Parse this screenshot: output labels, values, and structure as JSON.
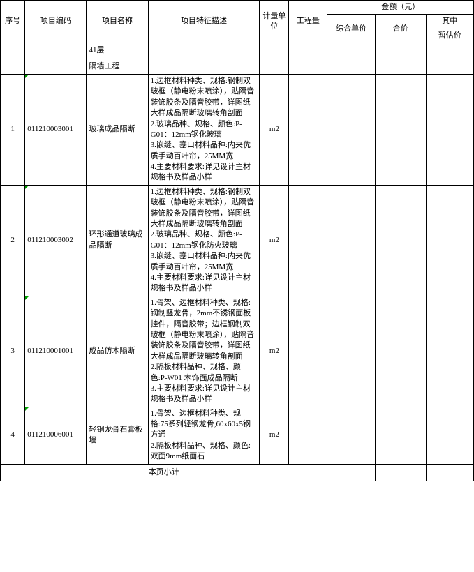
{
  "headers": {
    "seq": "序号",
    "code": "项目编码",
    "name": "项目名称",
    "desc": "项目特征描述",
    "unit": "计量单位",
    "qty": "工程量",
    "amount_group": "金额（元）",
    "unit_price": "综合单价",
    "total_price": "合价",
    "of_which": "其中",
    "est_price": "暂估价"
  },
  "section1": "41层",
  "section2": "隔墙工程",
  "rows": [
    {
      "seq": "1",
      "code": "011210003001",
      "name": "玻璃成品隔断",
      "desc": "1.边框材料种类、规格:钢制双玻框（静电粉末喷涂），贴隔音装饰胶条及隔音胶带，详图纸大样成品隔断玻璃转角剖面\n2.玻璃品种、规格、颜色:P-G01：12mm钢化玻璃\n3.嵌缝、塞口材料品种:内夹优质手动百叶帘，25MM宽\n4.主要材料要求:详见设计主材规格书及样品小样",
      "unit": "m2"
    },
    {
      "seq": "2",
      "code": "011210003002",
      "name": "环形通道玻璃成品隔断",
      "desc": "1.边框材料种类、规格:钢制双玻框（静电粉末喷涂），贴隔音装饰胶条及隔音胶带，详图纸大样成品隔断玻璃转角剖面\n2.玻璃品种、规格、颜色:P-G01：12mm钢化防火玻璃\n3.嵌缝、塞口材料品种:内夹优质手动百叶帘，25MM宽\n4.主要材料要求:详见设计主材规格书及样品小样",
      "unit": "m2"
    },
    {
      "seq": "3",
      "code": "011210001001",
      "name": "成品仿木隔断",
      "desc": "1.骨架、边框材料种类、规格:钢制竖龙骨，2mm不锈钢面板挂件，隔音胶带；边框钢制双玻框（静电粉末喷涂），贴隔音装饰胶条及隔音胶带，详图纸大样成品隔断玻璃转角剖面\n2.隔板材料品种、规格、颜色:P-W01 木饰面成品隔断\n3.主要材料要求:详见设计主材规格书及样品小样",
      "unit": "m2"
    },
    {
      "seq": "4",
      "code": "011210006001",
      "name": "轻钢龙骨石膏板墙",
      "desc": "1.骨架、边框材料种类、规格:75系列轻钢龙骨,60x60x5钢方通\n2.隔板材料品种、规格、颜色:双面9mm纸面石",
      "unit": "m2"
    }
  ],
  "subtotal": "本页小计"
}
